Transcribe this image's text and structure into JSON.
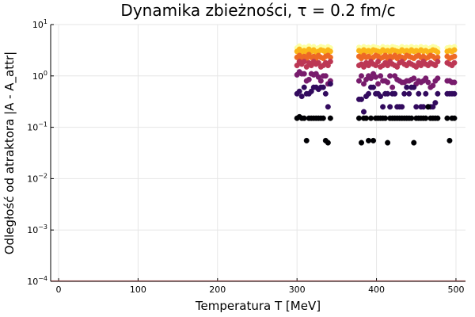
{
  "chart_data": {
    "type": "scatter",
    "title": "Dynamika zbieżności, τ = 0.2 fm/c",
    "xlabel": "Temperatura T [MeV]",
    "ylabel": "Odległość od atraktora |A - A_attr|",
    "xlim": [
      -10,
      512
    ],
    "ylim": [
      0.0001,
      10
    ],
    "yscale": "log",
    "grid": true,
    "legend": "none",
    "x_ticks": [
      {
        "value": 0,
        "label": "0"
      },
      {
        "value": 100,
        "label": "100"
      },
      {
        "value": 200,
        "label": "200"
      },
      {
        "value": 300,
        "label": "300"
      },
      {
        "value": 400,
        "label": "400"
      },
      {
        "value": 500,
        "label": "500"
      }
    ],
    "y_ticks": [
      {
        "value": 0.0001,
        "base": "10",
        "exp": "−4"
      },
      {
        "value": 0.001,
        "base": "10",
        "exp": "−3"
      },
      {
        "value": 0.01,
        "base": "10",
        "exp": "−2"
      },
      {
        "value": 0.1,
        "base": "10",
        "exp": "−1"
      },
      {
        "value": 1,
        "base": "10",
        "exp": "0"
      },
      {
        "value": 10,
        "base": "10",
        "exp": "1"
      }
    ],
    "colormap": [
      "#000004",
      "#320a5e",
      "#781c6d",
      "#bc3754",
      "#ed6925",
      "#fbb61a",
      "#fcffa4"
    ],
    "baseline_color": "#e26d6d",
    "x": [
      300,
      303,
      306,
      309,
      312,
      315,
      318,
      321,
      324,
      327,
      330,
      333,
      336,
      339,
      342,
      378,
      381,
      384,
      387,
      390,
      393,
      396,
      399,
      402,
      405,
      408,
      411,
      414,
      417,
      420,
      423,
      426,
      429,
      432,
      435,
      438,
      441,
      444,
      447,
      450,
      453,
      456,
      459,
      462,
      465,
      468,
      471,
      474,
      477,
      489,
      492,
      495,
      498
    ],
    "series": [
      {
        "values": [
          0.15,
          0.16,
          0.15,
          0.15,
          0.055,
          0.15,
          0.15,
          0.15,
          0.15,
          0.15,
          0.15,
          0.15,
          0.055,
          0.05,
          0.15,
          0.15,
          0.05,
          0.15,
          0.15,
          0.055,
          0.15,
          0.055,
          0.15,
          0.15,
          0.15,
          0.15,
          0.15,
          0.05,
          0.15,
          0.15,
          0.15,
          0.15,
          0.15,
          0.15,
          0.15,
          0.15,
          0.15,
          0.15,
          0.05,
          0.15,
          0.15,
          0.15,
          0.15,
          0.15,
          0.25,
          0.15,
          0.15,
          0.15,
          0.15,
          0.15,
          0.055,
          0.15,
          0.15
        ]
      },
      {
        "values": [
          0.45,
          0.5,
          0.4,
          0.6,
          0.45,
          0.45,
          0.5,
          0.6,
          0.6,
          0.55,
          0.6,
          0.6,
          0.45,
          0.25,
          0.7,
          0.35,
          0.35,
          0.2,
          0.4,
          0.45,
          0.6,
          0.6,
          0.45,
          0.45,
          0.4,
          0.25,
          0.45,
          0.45,
          0.25,
          0.45,
          0.45,
          0.25,
          0.25,
          0.25,
          0.45,
          0.6,
          0.45,
          0.6,
          0.6,
          0.25,
          0.45,
          0.25,
          0.25,
          0.45,
          0.25,
          0.25,
          0.25,
          0.3,
          0.45,
          0.45,
          0.45,
          0.45,
          0.45
        ]
      },
      {
        "values": [
          1.05,
          1.2,
          1.1,
          1.1,
          0.8,
          0.85,
          1.1,
          1.05,
          1.1,
          0.95,
          0.8,
          1.0,
          1.0,
          0.7,
          0.8,
          0.8,
          1.0,
          0.7,
          0.85,
          1.0,
          0.9,
          1.1,
          0.95,
          0.7,
          1.0,
          0.8,
          0.8,
          0.75,
          1.0,
          0.6,
          1.0,
          0.85,
          0.8,
          0.75,
          0.75,
          0.8,
          0.8,
          0.85,
          0.9,
          0.7,
          0.8,
          0.75,
          0.8,
          0.9,
          0.75,
          0.6,
          0.65,
          0.8,
          0.9,
          0.8,
          0.8,
          0.75,
          0.75
        ]
      },
      {
        "values": [
          1.6,
          1.9,
          1.7,
          1.9,
          1.5,
          1.8,
          1.6,
          1.9,
          1.7,
          1.8,
          1.5,
          1.6,
          1.8,
          1.6,
          1.9,
          1.6,
          1.7,
          1.5,
          1.8,
          1.6,
          1.9,
          1.7,
          1.6,
          1.9,
          1.5,
          1.6,
          1.8,
          1.6,
          1.9,
          1.7,
          1.6,
          1.5,
          1.8,
          1.9,
          1.7,
          1.6,
          1.8,
          1.7,
          1.6,
          1.5,
          1.8,
          1.6,
          1.9,
          1.7,
          1.6,
          1.8,
          1.7,
          1.6,
          1.9,
          1.8,
          1.7,
          1.6,
          1.8
        ]
      },
      {
        "values": [
          2.3,
          2.5,
          2.2,
          2.4,
          2.2,
          2.6,
          2.3,
          2.4,
          2.2,
          2.5,
          2.3,
          2.2,
          2.4,
          2.5,
          2.3,
          2.4,
          2.2,
          2.5,
          2.3,
          2.4,
          2.2,
          2.3,
          2.5,
          2.4,
          2.2,
          2.3,
          2.5,
          2.2,
          2.4,
          2.3,
          2.5,
          2.2,
          2.4,
          2.3,
          2.2,
          2.5,
          2.4,
          2.3,
          2.2,
          2.4,
          2.5,
          2.3,
          2.4,
          2.2,
          2.3,
          2.5,
          2.4,
          2.2,
          2.3,
          2.4,
          2.2,
          2.3,
          2.4
        ]
      },
      {
        "values": [
          3.0,
          3.3,
          2.9,
          3.1,
          2.9,
          3.3,
          3.0,
          3.2,
          2.9,
          3.0,
          3.2,
          3.1,
          2.9,
          3.2,
          3.0,
          3.1,
          2.9,
          3.2,
          3.0,
          3.1,
          2.9,
          3.2,
          3.1,
          3.0,
          2.9,
          3.2,
          3.0,
          3.1,
          2.9,
          3.2,
          3.1,
          3.0,
          2.9,
          3.2,
          3.0,
          3.1,
          2.9,
          3.2,
          3.0,
          3.1,
          2.9,
          3.2,
          3.0,
          3.1,
          2.9,
          3.0,
          3.2,
          3.1,
          2.9,
          3.0,
          3.1,
          3.0,
          3.2
        ]
      },
      {
        "values": [
          3.5,
          3.8,
          3.4,
          3.6,
          3.4,
          3.8,
          3.5,
          3.7,
          3.4,
          3.5,
          3.7,
          3.6,
          3.4,
          3.7,
          3.5,
          3.6,
          3.4,
          3.7,
          3.5,
          3.6,
          3.4,
          3.7,
          3.6,
          3.5,
          3.4,
          3.7,
          3.5,
          3.6,
          3.4,
          3.7,
          3.6,
          3.5,
          3.4,
          3.7,
          3.5,
          3.6,
          3.4,
          3.7,
          3.5,
          3.6,
          3.4,
          3.7,
          3.5,
          3.6,
          3.4,
          3.5,
          3.7,
          3.6,
          3.4,
          3.5,
          3.6,
          3.5,
          3.7
        ]
      }
    ]
  }
}
